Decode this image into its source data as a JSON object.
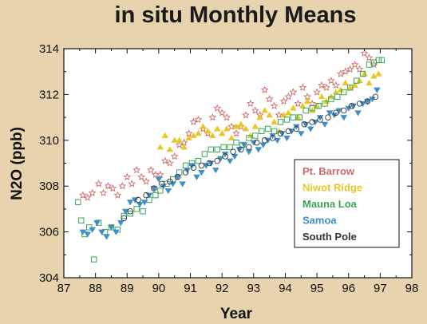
{
  "chart_data": {
    "type": "scatter",
    "title": "in situ Monthly Means",
    "xlabel": "Year",
    "ylabel": "N2O (ppb)",
    "xlim": [
      87,
      98
    ],
    "ylim": [
      304,
      314
    ],
    "xticks": [
      "87",
      "88",
      "89",
      "90",
      "91",
      "92",
      "93",
      "94",
      "95",
      "96",
      "97",
      "98"
    ],
    "yticks": [
      "304",
      "306",
      "308",
      "310",
      "312",
      "314"
    ],
    "grid": false,
    "legend_position": "lower-right",
    "series": [
      {
        "name": "Pt. Barrow",
        "marker": "star",
        "color": "#d06a6a",
        "points": [
          [
            87.6,
            307.6
          ],
          [
            87.75,
            307.5
          ],
          [
            87.9,
            307.7
          ],
          [
            88.1,
            308.1
          ],
          [
            88.25,
            307.7
          ],
          [
            88.4,
            308.0
          ],
          [
            88.55,
            307.9
          ],
          [
            88.7,
            307.6
          ],
          [
            88.85,
            308.0
          ],
          [
            89.0,
            308.4
          ],
          [
            89.15,
            308.1
          ],
          [
            89.3,
            308.7
          ],
          [
            89.45,
            308.4
          ],
          [
            89.6,
            308.2
          ],
          [
            89.75,
            308.7
          ],
          [
            89.9,
            308.5
          ],
          [
            90.05,
            308.5
          ],
          [
            90.2,
            309.1
          ],
          [
            90.35,
            309.0
          ],
          [
            90.5,
            309.3
          ],
          [
            90.65,
            309.8
          ],
          [
            90.8,
            309.9
          ],
          [
            90.95,
            310.3
          ],
          [
            91.1,
            310.8
          ],
          [
            91.25,
            310.9
          ],
          [
            91.4,
            310.5
          ],
          [
            91.55,
            310.3
          ],
          [
            91.7,
            311.0
          ],
          [
            91.85,
            311.4
          ],
          [
            92.0,
            311.2
          ],
          [
            92.15,
            311.0
          ],
          [
            92.3,
            310.6
          ],
          [
            92.45,
            310.3
          ],
          [
            92.6,
            310.6
          ],
          [
            92.75,
            311.1
          ],
          [
            92.9,
            311.6
          ],
          [
            93.05,
            311.3
          ],
          [
            93.2,
            311.1
          ],
          [
            93.35,
            312.2
          ],
          [
            93.5,
            311.8
          ],
          [
            93.65,
            311.5
          ],
          [
            93.8,
            311.1
          ],
          [
            93.95,
            311.7
          ],
          [
            94.1,
            311.9
          ],
          [
            94.25,
            312.1
          ],
          [
            94.4,
            311.6
          ],
          [
            94.55,
            312.3
          ],
          [
            94.7,
            311.9
          ],
          [
            94.85,
            311.6
          ],
          [
            95.0,
            312.1
          ],
          [
            95.15,
            312.4
          ],
          [
            95.3,
            312.3
          ],
          [
            95.45,
            312.6
          ],
          [
            95.6,
            312.4
          ],
          [
            95.75,
            312.9
          ],
          [
            95.9,
            313.0
          ],
          [
            96.05,
            313.1
          ],
          [
            96.2,
            313.3
          ],
          [
            96.35,
            313.1
          ],
          [
            96.5,
            313.8
          ],
          [
            96.65,
            313.6
          ],
          [
            96.8,
            313.3
          ]
        ]
      },
      {
        "name": "Niwot Ridge",
        "marker": "triangle-up",
        "color": "#e8c826",
        "points": [
          [
            90.05,
            309.7
          ],
          [
            90.2,
            310.2
          ],
          [
            90.35,
            309.6
          ],
          [
            90.5,
            310.0
          ],
          [
            90.65,
            310.0
          ],
          [
            90.8,
            309.7
          ],
          [
            90.95,
            310.1
          ],
          [
            91.1,
            310.2
          ],
          [
            91.25,
            310.3
          ],
          [
            91.4,
            310.6
          ],
          [
            91.55,
            310.4
          ],
          [
            91.7,
            310.2
          ],
          [
            91.85,
            310.5
          ],
          [
            92.0,
            310.3
          ],
          [
            92.15,
            310.5
          ],
          [
            92.3,
            310.1
          ],
          [
            92.45,
            310.6
          ],
          [
            92.6,
            310.7
          ],
          [
            92.75,
            310.5
          ],
          [
            92.9,
            310.2
          ],
          [
            93.05,
            310.6
          ],
          [
            93.2,
            311.0
          ],
          [
            93.35,
            311.3
          ],
          [
            93.5,
            311.1
          ],
          [
            93.65,
            310.8
          ],
          [
            93.8,
            310.4
          ],
          [
            93.95,
            311.1
          ],
          [
            94.1,
            311.2
          ],
          [
            94.25,
            311.4
          ],
          [
            94.4,
            311.0
          ],
          [
            94.55,
            311.5
          ],
          [
            94.7,
            311.7
          ],
          [
            94.85,
            311.3
          ],
          [
            95.0,
            311.5
          ],
          [
            95.15,
            311.9
          ],
          [
            95.3,
            311.7
          ],
          [
            95.45,
            311.9
          ],
          [
            95.6,
            312.1
          ],
          [
            95.75,
            312.2
          ],
          [
            95.9,
            312.5
          ],
          [
            96.05,
            312.3
          ],
          [
            96.2,
            312.4
          ],
          [
            96.35,
            312.6
          ],
          [
            96.5,
            312.9
          ],
          [
            96.65,
            312.5
          ],
          [
            96.8,
            312.8
          ],
          [
            96.95,
            312.9
          ]
        ]
      },
      {
        "name": "Mauna Loa",
        "marker": "square-open",
        "color": "#3aa55a",
        "points": [
          [
            87.45,
            307.3
          ],
          [
            87.55,
            306.5
          ],
          [
            87.65,
            305.9
          ],
          [
            87.8,
            306.2
          ],
          [
            87.95,
            304.8
          ],
          [
            88.1,
            306.4
          ],
          [
            88.3,
            306.0
          ],
          [
            88.5,
            306.2
          ],
          [
            88.7,
            306.1
          ],
          [
            88.9,
            306.7
          ],
          [
            89.1,
            306.8
          ],
          [
            89.3,
            307.0
          ],
          [
            89.5,
            306.9
          ],
          [
            89.7,
            307.4
          ],
          [
            89.9,
            307.6
          ],
          [
            90.05,
            307.8
          ],
          [
            90.25,
            308.1
          ],
          [
            90.45,
            308.3
          ],
          [
            90.65,
            308.6
          ],
          [
            90.85,
            308.9
          ],
          [
            91.05,
            309.0
          ],
          [
            91.25,
            309.1
          ],
          [
            91.45,
            309.4
          ],
          [
            91.65,
            309.6
          ],
          [
            91.85,
            309.6
          ],
          [
            92.05,
            309.7
          ],
          [
            92.25,
            309.7
          ],
          [
            92.45,
            309.9
          ],
          [
            92.65,
            309.8
          ],
          [
            92.85,
            310.1
          ],
          [
            93.05,
            310.2
          ],
          [
            93.25,
            310.4
          ],
          [
            93.45,
            310.5
          ],
          [
            93.65,
            310.4
          ],
          [
            93.85,
            310.8
          ],
          [
            94.05,
            310.9
          ],
          [
            94.25,
            311.0
          ],
          [
            94.45,
            311.0
          ],
          [
            94.65,
            311.3
          ],
          [
            94.85,
            311.4
          ],
          [
            95.05,
            311.5
          ],
          [
            95.25,
            311.6
          ],
          [
            95.45,
            311.8
          ],
          [
            95.65,
            311.9
          ],
          [
            95.85,
            312.1
          ],
          [
            96.05,
            312.3
          ],
          [
            96.25,
            312.6
          ],
          [
            96.45,
            312.9
          ],
          [
            96.65,
            313.3
          ],
          [
            96.8,
            313.4
          ],
          [
            96.95,
            313.5
          ],
          [
            97.05,
            313.5
          ]
        ]
      },
      {
        "name": "Samoa",
        "marker": "triangle-down",
        "color": "#3f8fc7",
        "points": [
          [
            87.6,
            306.0
          ],
          [
            87.75,
            305.9
          ],
          [
            87.9,
            306.1
          ],
          [
            88.05,
            306.4
          ],
          [
            88.2,
            306.0
          ],
          [
            88.35,
            305.8
          ],
          [
            88.5,
            306.2
          ],
          [
            88.65,
            306.0
          ],
          [
            88.8,
            306.4
          ],
          [
            88.95,
            306.9
          ],
          [
            89.1,
            307.3
          ],
          [
            89.25,
            307.4
          ],
          [
            89.4,
            307.2
          ],
          [
            89.55,
            307.3
          ],
          [
            89.7,
            307.6
          ],
          [
            89.85,
            307.9
          ],
          [
            90.0,
            308.3
          ],
          [
            90.15,
            308.0
          ],
          [
            90.3,
            307.8
          ],
          [
            90.45,
            308.1
          ],
          [
            90.6,
            308.4
          ],
          [
            90.75,
            308.1
          ],
          [
            90.9,
            308.7
          ],
          [
            91.05,
            308.9
          ],
          [
            91.2,
            308.4
          ],
          [
            91.35,
            308.6
          ],
          [
            91.5,
            308.9
          ],
          [
            91.65,
            309.0
          ],
          [
            91.8,
            308.7
          ],
          [
            91.95,
            309.2
          ],
          [
            92.1,
            309.4
          ],
          [
            92.25,
            309.1
          ],
          [
            92.4,
            309.3
          ],
          [
            92.55,
            309.6
          ],
          [
            92.7,
            309.8
          ],
          [
            92.85,
            309.5
          ],
          [
            93.0,
            309.9
          ],
          [
            93.15,
            309.6
          ],
          [
            93.3,
            309.8
          ],
          [
            93.45,
            310.0
          ],
          [
            93.6,
            310.2
          ],
          [
            93.75,
            310.0
          ],
          [
            93.9,
            310.3
          ],
          [
            94.05,
            310.1
          ],
          [
            94.2,
            310.4
          ],
          [
            94.35,
            310.6
          ],
          [
            94.5,
            310.3
          ],
          [
            94.65,
            310.7
          ],
          [
            94.8,
            310.5
          ],
          [
            94.95,
            310.8
          ],
          [
            95.1,
            311.0
          ],
          [
            95.25,
            310.7
          ],
          [
            95.4,
            311.2
          ],
          [
            95.55,
            311.1
          ],
          [
            95.7,
            311.3
          ],
          [
            95.85,
            311.0
          ],
          [
            96.0,
            311.4
          ],
          [
            96.15,
            311.5
          ],
          [
            96.3,
            311.2
          ],
          [
            96.45,
            311.6
          ],
          [
            96.6,
            311.7
          ],
          [
            96.75,
            311.8
          ],
          [
            96.9,
            312.2
          ]
        ]
      },
      {
        "name": "South Pole",
        "marker": "circle-open",
        "color": "#333333",
        "points": [
          [
            88.9,
            306.6
          ],
          [
            89.1,
            306.9
          ],
          [
            89.35,
            307.4
          ],
          [
            89.6,
            307.6
          ],
          [
            89.85,
            307.9
          ],
          [
            90.1,
            308.1
          ],
          [
            90.35,
            308.2
          ],
          [
            90.6,
            308.4
          ],
          [
            90.85,
            308.6
          ],
          [
            91.1,
            308.8
          ],
          [
            91.35,
            308.9
          ],
          [
            91.6,
            309.0
          ],
          [
            91.85,
            309.1
          ],
          [
            92.1,
            309.3
          ],
          [
            92.35,
            309.5
          ],
          [
            92.6,
            309.6
          ],
          [
            92.85,
            309.7
          ],
          [
            93.1,
            309.9
          ],
          [
            93.35,
            310.0
          ],
          [
            93.6,
            310.1
          ],
          [
            93.85,
            310.3
          ],
          [
            94.1,
            310.4
          ],
          [
            94.35,
            310.5
          ],
          [
            94.6,
            310.7
          ],
          [
            94.85,
            310.8
          ],
          [
            95.1,
            310.9
          ],
          [
            95.35,
            311.0
          ],
          [
            95.6,
            311.2
          ],
          [
            95.85,
            311.3
          ],
          [
            96.1,
            311.5
          ],
          [
            96.35,
            311.6
          ],
          [
            96.6,
            311.7
          ],
          [
            96.85,
            311.9
          ]
        ]
      }
    ]
  }
}
